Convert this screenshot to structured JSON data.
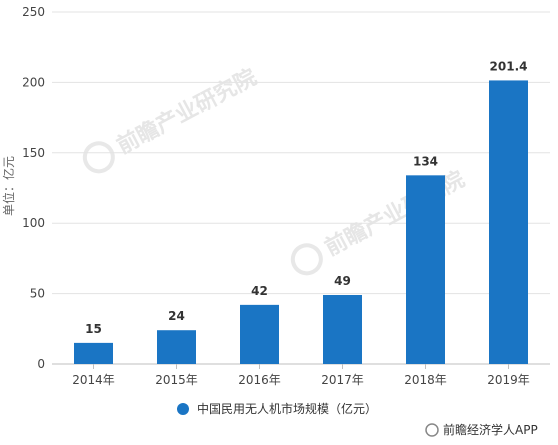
{
  "chart_data": {
    "type": "bar",
    "categories": [
      "2014年",
      "2015年",
      "2016年",
      "2017年",
      "2018年",
      "2019年"
    ],
    "values": [
      15,
      24,
      42,
      49,
      134,
      201.4
    ],
    "value_labels": [
      "15",
      "24",
      "42",
      "49",
      "134",
      "201.4"
    ],
    "ylabel": "单位：亿元",
    "ylim": [
      0,
      250
    ],
    "yticks": [
      0,
      50,
      100,
      150,
      200,
      250
    ],
    "grid": true,
    "legend": {
      "position": "bottom",
      "label": "中国民用无人机市场规模（亿元）"
    },
    "bar_color": "#1a75c4"
  },
  "watermark": "前瞻产业研究院",
  "credit": "前瞻经济学人APP"
}
